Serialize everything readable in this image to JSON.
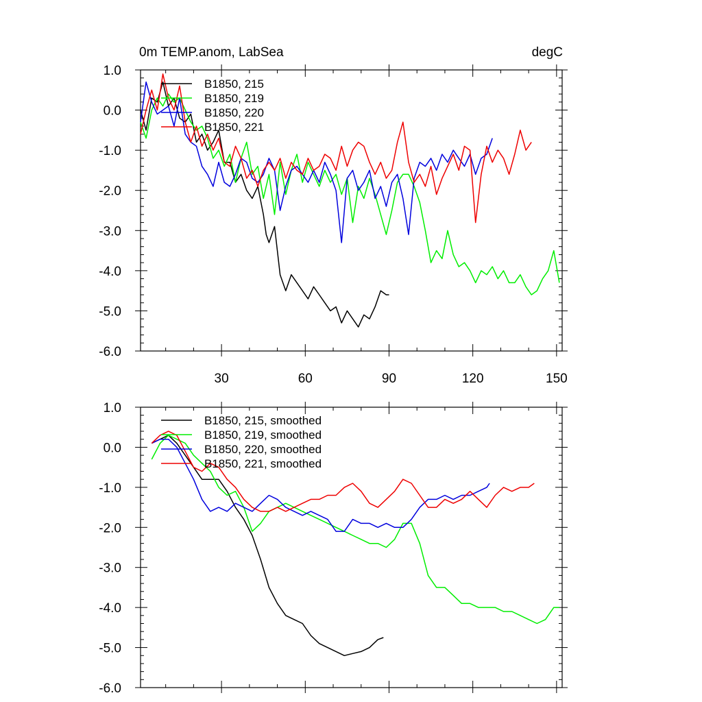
{
  "chart_data": [
    {
      "type": "line",
      "title": "0m TEMP.anom, LabSea",
      "units": "degC",
      "xlim": [
        1,
        152
      ],
      "ylim": [
        -6,
        1
      ],
      "xticks": [
        30,
        60,
        90,
        120,
        150
      ],
      "yticks": [
        1,
        0,
        -1,
        -2,
        -3,
        -4,
        -5,
        -6
      ],
      "ytick_labels": [
        "1.0",
        "0.0",
        "-1.0",
        "-2.0",
        "-3.0",
        "-4.0",
        "-5.0",
        "-6.0"
      ],
      "legend_position": "top-left",
      "series": [
        {
          "name": "B1850, 215",
          "color": "#000000",
          "x": [
            1,
            3,
            5,
            7,
            9,
            11,
            13,
            15,
            17,
            19,
            21,
            23,
            25,
            27,
            29,
            31,
            33,
            35,
            37,
            39,
            41,
            43,
            45,
            46,
            47,
            49,
            51,
            53,
            55,
            57,
            59,
            61,
            63,
            65,
            67,
            69,
            71,
            73,
            75,
            77,
            79,
            81,
            83,
            85,
            87,
            89,
            90
          ],
          "y": [
            0,
            -0.5,
            0.3,
            0.2,
            0.7,
            0.1,
            0.3,
            -0.2,
            -0.3,
            -0.1,
            -0.8,
            -0.6,
            -1.0,
            -0.8,
            -0.5,
            -1.3,
            -1.3,
            -1.8,
            -1.6,
            -2.0,
            -2.2,
            -1.9,
            -2.6,
            -3.1,
            -3.3,
            -2.9,
            -4.1,
            -4.5,
            -4.1,
            -4.3,
            -4.5,
            -4.7,
            -4.4,
            -4.6,
            -4.8,
            -5.0,
            -4.9,
            -5.3,
            -5.0,
            -5.2,
            -5.4,
            -5.1,
            -5.2,
            -4.9,
            -4.5,
            -4.6,
            -4.6
          ]
        },
        {
          "name": "B1850, 219",
          "color": "#00ee00",
          "x": [
            1,
            3,
            5,
            7,
            9,
            11,
            13,
            15,
            17,
            19,
            21,
            23,
            25,
            27,
            29,
            31,
            33,
            35,
            37,
            39,
            41,
            43,
            45,
            47,
            49,
            51,
            53,
            55,
            57,
            59,
            61,
            63,
            65,
            67,
            69,
            71,
            73,
            75,
            77,
            79,
            81,
            83,
            85,
            87,
            89,
            91,
            93,
            95,
            97,
            99,
            101,
            103,
            105,
            107,
            109,
            111,
            113,
            115,
            117,
            119,
            121,
            123,
            125,
            127,
            129,
            131,
            133,
            135,
            137,
            139,
            141,
            143,
            145,
            147,
            149,
            151
          ],
          "y": [
            -0.3,
            -0.7,
            0.0,
            0.3,
            0.1,
            0.4,
            0.2,
            0.3,
            0.0,
            -0.3,
            -0.5,
            -0.4,
            -0.7,
            -1.2,
            -1.0,
            -1.4,
            -1.1,
            -1.8,
            -1.2,
            -0.8,
            -1.6,
            -1.4,
            -2.2,
            -1.6,
            -2.6,
            -1.3,
            -2.1,
            -1.5,
            -1.1,
            -1.8,
            -1.3,
            -1.6,
            -1.9,
            -1.5,
            -1.8,
            -1.6,
            -2.1,
            -1.7,
            -2.8,
            -1.9,
            -2.2,
            -1.7,
            -2.1,
            -2.6,
            -3.1,
            -2.5,
            -1.8,
            -1.6,
            -1.6,
            -1.9,
            -2.3,
            -3.0,
            -3.8,
            -3.5,
            -3.7,
            -3.0,
            -3.6,
            -3.9,
            -3.8,
            -4.0,
            -4.3,
            -4.0,
            -4.1,
            -3.9,
            -4.2,
            -4.0,
            -4.3,
            -4.3,
            -4.1,
            -4.4,
            -4.6,
            -4.5,
            -4.2,
            -4.0,
            -3.5,
            -4.3
          ]
        },
        {
          "name": "B1850, 220",
          "color": "#0000dd",
          "x": [
            1,
            3,
            5,
            7,
            9,
            11,
            13,
            15,
            17,
            19,
            21,
            23,
            25,
            27,
            29,
            31,
            33,
            35,
            37,
            39,
            41,
            43,
            45,
            47,
            49,
            51,
            53,
            55,
            57,
            59,
            61,
            63,
            65,
            67,
            69,
            71,
            73,
            75,
            77,
            79,
            81,
            83,
            85,
            87,
            89,
            91,
            93,
            95,
            97,
            99,
            101,
            103,
            105,
            107,
            109,
            111,
            113,
            115,
            117,
            119,
            121,
            123,
            125,
            127
          ],
          "y": [
            -0.3,
            0.7,
            0.2,
            -0.1,
            0.0,
            0.1,
            -0.4,
            0.3,
            -0.6,
            -0.8,
            -0.9,
            -1.4,
            -1.6,
            -1.9,
            -1.3,
            -1.8,
            -1.9,
            -1.6,
            -1.2,
            -1.3,
            -1.7,
            -1.8,
            -1.6,
            -1.2,
            -1.5,
            -2.5,
            -1.9,
            -1.5,
            -1.4,
            -1.6,
            -1.8,
            -1.5,
            -1.8,
            -1.3,
            -1.6,
            -2.0,
            -3.3,
            -1.7,
            -1.5,
            -2.0,
            -1.8,
            -1.5,
            -2.2,
            -1.9,
            -2.4,
            -1.8,
            -1.6,
            -2.2,
            -3.1,
            -1.7,
            -1.3,
            -1.4,
            -1.2,
            -1.5,
            -1.1,
            -1.3,
            -1.0,
            -1.2,
            -1.4,
            -1.1,
            -1.6,
            -1.2,
            -1.1,
            -0.7
          ]
        },
        {
          "name": "B1850, 221",
          "color": "#ee0000",
          "x": [
            1,
            3,
            5,
            7,
            9,
            11,
            13,
            15,
            17,
            19,
            21,
            23,
            25,
            27,
            29,
            31,
            33,
            35,
            37,
            39,
            41,
            43,
            45,
            47,
            49,
            51,
            53,
            55,
            57,
            59,
            61,
            63,
            65,
            67,
            69,
            71,
            73,
            75,
            77,
            79,
            81,
            83,
            85,
            87,
            89,
            91,
            93,
            95,
            97,
            99,
            101,
            103,
            105,
            107,
            109,
            111,
            113,
            115,
            117,
            119,
            121,
            123,
            125,
            127,
            129,
            131,
            133,
            135,
            137,
            139,
            141
          ],
          "y": [
            -0.6,
            0.0,
            0.5,
            0.0,
            0.9,
            0.3,
            0.0,
            0.6,
            -0.3,
            -0.8,
            -0.4,
            -0.9,
            -0.6,
            -1.0,
            -0.7,
            -1.3,
            -1.4,
            -0.9,
            -1.2,
            -1.7,
            -1.5,
            -1.9,
            -1.5,
            -1.3,
            -1.5,
            -1.2,
            -1.7,
            -1.3,
            -1.5,
            -1.6,
            -1.2,
            -1.5,
            -1.4,
            -1.1,
            -1.2,
            -1.5,
            -0.9,
            -1.4,
            -1.0,
            -0.8,
            -0.9,
            -1.3,
            -1.6,
            -1.3,
            -1.7,
            -1.5,
            -0.8,
            -0.3,
            -1.3,
            -1.8,
            -1.6,
            -1.9,
            -1.4,
            -2.1,
            -1.7,
            -1.4,
            -1.1,
            -1.5,
            -0.9,
            -1.0,
            -2.8,
            -1.6,
            -0.9,
            -1.3,
            -1.0,
            -1.2,
            -1.6,
            -1.1,
            -0.5,
            -1.0,
            -0.8
          ]
        }
      ]
    },
    {
      "type": "line",
      "title": "",
      "xlim": [
        1,
        152
      ],
      "ylim": [
        -6,
        1
      ],
      "xticks": [
        30,
        60,
        90,
        120,
        150
      ],
      "yticks": [
        1,
        0,
        -1,
        -2,
        -3,
        -4,
        -5,
        -6
      ],
      "ytick_labels": [
        "1.0",
        "0.0",
        "-1.0",
        "-2.0",
        "-3.0",
        "-4.0",
        "-5.0",
        "-6.0"
      ],
      "legend_position": "top-left",
      "series": [
        {
          "name": "B1850, 215, smoothed",
          "color": "#000000",
          "x": [
            5,
            8,
            11,
            14,
            17,
            20,
            23,
            26,
            29,
            32,
            35,
            38,
            41,
            44,
            47,
            50,
            53,
            56,
            59,
            62,
            65,
            68,
            71,
            74,
            77,
            80,
            83,
            86,
            88
          ],
          "y": [
            0.1,
            0.2,
            0.3,
            0.1,
            -0.2,
            -0.5,
            -0.8,
            -0.8,
            -0.8,
            -1.1,
            -1.5,
            -1.8,
            -2.2,
            -2.8,
            -3.5,
            -3.9,
            -4.2,
            -4.3,
            -4.4,
            -4.7,
            -4.9,
            -5.0,
            -5.1,
            -5.2,
            -5.15,
            -5.1,
            -5.0,
            -4.8,
            -4.75
          ]
        },
        {
          "name": "B1850, 219, smoothed",
          "color": "#00ee00",
          "x": [
            5,
            8,
            11,
            14,
            17,
            20,
            23,
            26,
            29,
            32,
            35,
            38,
            41,
            44,
            47,
            50,
            53,
            56,
            59,
            62,
            65,
            68,
            71,
            74,
            77,
            80,
            83,
            86,
            89,
            92,
            95,
            98,
            101,
            104,
            107,
            110,
            113,
            116,
            119,
            122,
            125,
            128,
            131,
            134,
            137,
            140,
            143,
            146,
            149,
            151
          ],
          "y": [
            -0.3,
            0.1,
            0.3,
            0.2,
            0.1,
            -0.2,
            -0.4,
            -0.6,
            -1.0,
            -1.2,
            -1.1,
            -1.5,
            -2.1,
            -1.9,
            -1.6,
            -1.5,
            -1.4,
            -1.5,
            -1.6,
            -1.7,
            -1.8,
            -1.9,
            -2.0,
            -2.1,
            -2.2,
            -2.3,
            -2.4,
            -2.4,
            -2.5,
            -2.3,
            -1.9,
            -1.9,
            -2.4,
            -3.2,
            -3.5,
            -3.5,
            -3.7,
            -3.9,
            -3.9,
            -4.0,
            -4.0,
            -4.0,
            -4.1,
            -4.1,
            -4.2,
            -4.3,
            -4.4,
            -4.3,
            -4.0,
            -4.0
          ]
        },
        {
          "name": "B1850, 220, smoothed",
          "color": "#0000dd",
          "x": [
            5,
            8,
            11,
            14,
            17,
            20,
            23,
            26,
            29,
            32,
            35,
            38,
            41,
            44,
            47,
            50,
            53,
            56,
            59,
            62,
            65,
            68,
            71,
            74,
            77,
            80,
            83,
            86,
            89,
            92,
            95,
            98,
            101,
            104,
            107,
            110,
            113,
            116,
            119,
            122,
            125,
            126
          ],
          "y": [
            0.1,
            0.2,
            0.2,
            0.0,
            -0.4,
            -0.8,
            -1.3,
            -1.6,
            -1.5,
            -1.6,
            -1.4,
            -1.5,
            -1.6,
            -1.4,
            -1.2,
            -1.3,
            -1.5,
            -1.6,
            -1.7,
            -1.6,
            -1.7,
            -1.8,
            -2.1,
            -2.1,
            -1.8,
            -1.9,
            -1.9,
            -2.0,
            -1.9,
            -2.0,
            -2.0,
            -1.8,
            -1.5,
            -1.3,
            -1.3,
            -1.2,
            -1.3,
            -1.2,
            -1.2,
            -1.1,
            -1.0,
            -0.9
          ]
        },
        {
          "name": "B1850, 221, smoothed",
          "color": "#ee0000",
          "x": [
            5,
            8,
            11,
            14,
            17,
            20,
            23,
            26,
            29,
            32,
            35,
            38,
            41,
            44,
            47,
            50,
            53,
            56,
            59,
            62,
            65,
            68,
            71,
            74,
            77,
            80,
            83,
            86,
            89,
            92,
            95,
            98,
            101,
            104,
            107,
            110,
            113,
            116,
            119,
            122,
            125,
            128,
            131,
            134,
            137,
            140,
            142
          ],
          "y": [
            0.1,
            0.3,
            0.4,
            0.3,
            -0.1,
            -0.5,
            -0.6,
            -0.4,
            -0.5,
            -0.8,
            -1.0,
            -1.3,
            -1.5,
            -1.6,
            -1.6,
            -1.5,
            -1.6,
            -1.5,
            -1.4,
            -1.3,
            -1.3,
            -1.2,
            -1.2,
            -1.0,
            -0.9,
            -1.1,
            -1.4,
            -1.5,
            -1.3,
            -1.1,
            -0.8,
            -0.9,
            -1.2,
            -1.5,
            -1.5,
            -1.3,
            -1.4,
            -1.3,
            -1.1,
            -1.3,
            -1.5,
            -1.2,
            -1.0,
            -1.1,
            -1.0,
            -1.0,
            -0.9
          ]
        }
      ]
    }
  ]
}
